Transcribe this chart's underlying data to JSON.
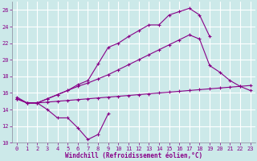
{
  "xlabel": "Windchill (Refroidissement éolien,°C)",
  "background_color": "#cce9e9",
  "line_color": "#880088",
  "grid_color": "#aadddd",
  "xlim": [
    -0.5,
    23.5
  ],
  "ylim": [
    10,
    27
  ],
  "yticks": [
    10,
    12,
    14,
    16,
    18,
    20,
    22,
    24,
    26
  ],
  "xticks": [
    0,
    1,
    2,
    3,
    4,
    5,
    6,
    7,
    8,
    9,
    10,
    11,
    12,
    13,
    14,
    15,
    16,
    17,
    18,
    19,
    20,
    21,
    22,
    23
  ],
  "line1_x": [
    0,
    1,
    2,
    3,
    4,
    5,
    6,
    7,
    8,
    9
  ],
  "line1_y": [
    15.5,
    14.8,
    14.8,
    14.0,
    13.0,
    13.0,
    11.8,
    10.4,
    11.0,
    13.5
  ],
  "line2_x": [
    0,
    1,
    2,
    3,
    4,
    5,
    6,
    7,
    8,
    9,
    10,
    11,
    12,
    13,
    14,
    15,
    16,
    17,
    18,
    19,
    20,
    21,
    22,
    23
  ],
  "line2_y": [
    15.3,
    14.8,
    14.8,
    14.9,
    15.0,
    15.1,
    15.2,
    15.3,
    15.4,
    15.5,
    15.6,
    15.7,
    15.8,
    15.9,
    16.0,
    16.1,
    16.2,
    16.3,
    16.4,
    16.5,
    16.6,
    16.7,
    16.8,
    16.9
  ],
  "line3_x": [
    0,
    1,
    2,
    3,
    4,
    5,
    6,
    7,
    8,
    9,
    10,
    11,
    12,
    13,
    14,
    15,
    16,
    17,
    18,
    19,
    20,
    21,
    22,
    23
  ],
  "line3_y": [
    15.3,
    14.8,
    14.8,
    15.3,
    15.8,
    16.3,
    16.8,
    17.2,
    17.7,
    18.2,
    18.8,
    19.4,
    20.0,
    20.6,
    21.2,
    21.8,
    22.4,
    23.0,
    22.5,
    19.3,
    18.5,
    17.5,
    16.8,
    16.3
  ],
  "line4_x": [
    0,
    1,
    2,
    3,
    4,
    5,
    6,
    7,
    8,
    9,
    10,
    11,
    12,
    13,
    14,
    15,
    16,
    17,
    18,
    19
  ],
  "line4_y": [
    15.3,
    14.8,
    14.8,
    15.3,
    15.8,
    16.3,
    17.0,
    17.5,
    19.5,
    21.5,
    22.0,
    22.8,
    23.5,
    24.2,
    24.2,
    25.4,
    25.8,
    26.2,
    25.4,
    22.8
  ]
}
